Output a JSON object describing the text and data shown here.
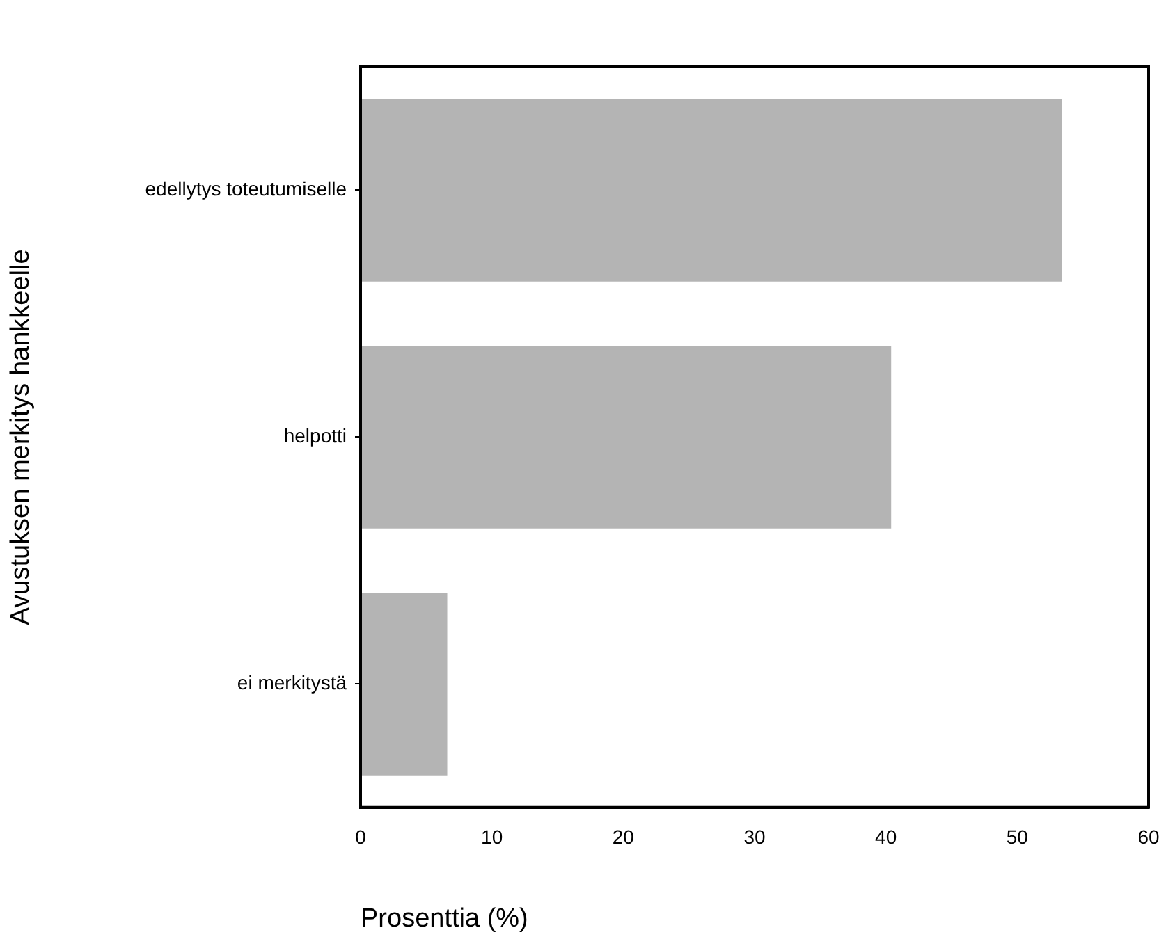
{
  "chart_data": {
    "type": "bar",
    "orientation": "horizontal",
    "xlabel": "Prosenttia (%)",
    "ylabel": "Avustuksen merkitys hankkeelle",
    "categories": [
      "edellytys toteutumiselle",
      "helpotti",
      "ei merkitystä"
    ],
    "values": [
      53.4,
      40.4,
      6.6
    ],
    "color": "#b4b4b4",
    "xlim": [
      0,
      60
    ],
    "xticks": [
      0,
      10,
      20,
      30,
      40,
      50,
      60
    ],
    "grid": false,
    "legend": false
  }
}
